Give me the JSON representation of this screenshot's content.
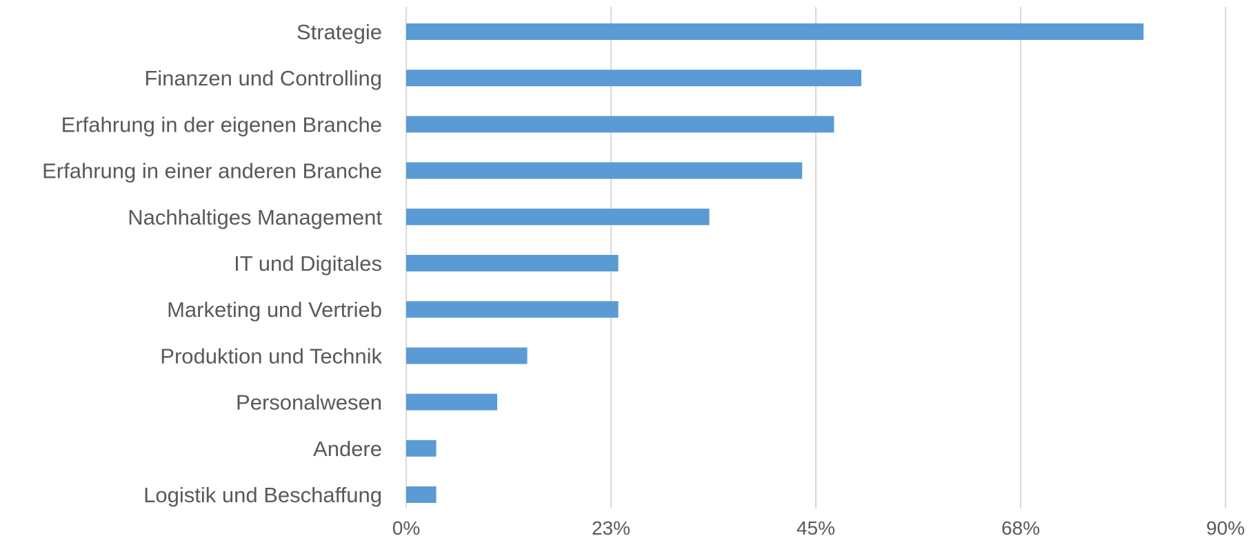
{
  "chart_data": {
    "type": "bar",
    "orientation": "horizontal",
    "categories": [
      "Strategie",
      "Finanzen und Controlling",
      "Erfahrung in der eigenen Branche",
      "Erfahrung in einer anderen Branche",
      "Nachhaltiges Management",
      "IT und Digitales",
      "Marketing und Vertrieb",
      "Produktion und Technik",
      "Personalwesen",
      "Andere",
      "Logistik und Beschaffung"
    ],
    "values": [
      81,
      50,
      47,
      43.5,
      33.3,
      23.3,
      23.3,
      13.3,
      10,
      3.3,
      3.3
    ],
    "unit": "%",
    "xlim": [
      0,
      90
    ],
    "xticks": [
      "0%",
      "23%",
      "45%",
      "68%",
      "90%"
    ],
    "xtick_values": [
      0,
      22.5,
      45,
      67.5,
      90
    ],
    "title": "",
    "xlabel": "",
    "ylabel": "",
    "grid": true,
    "legend": "none",
    "bar_color": "#5B9BD5",
    "grid_color": "#D9D9D9",
    "text_color": "#595959"
  }
}
